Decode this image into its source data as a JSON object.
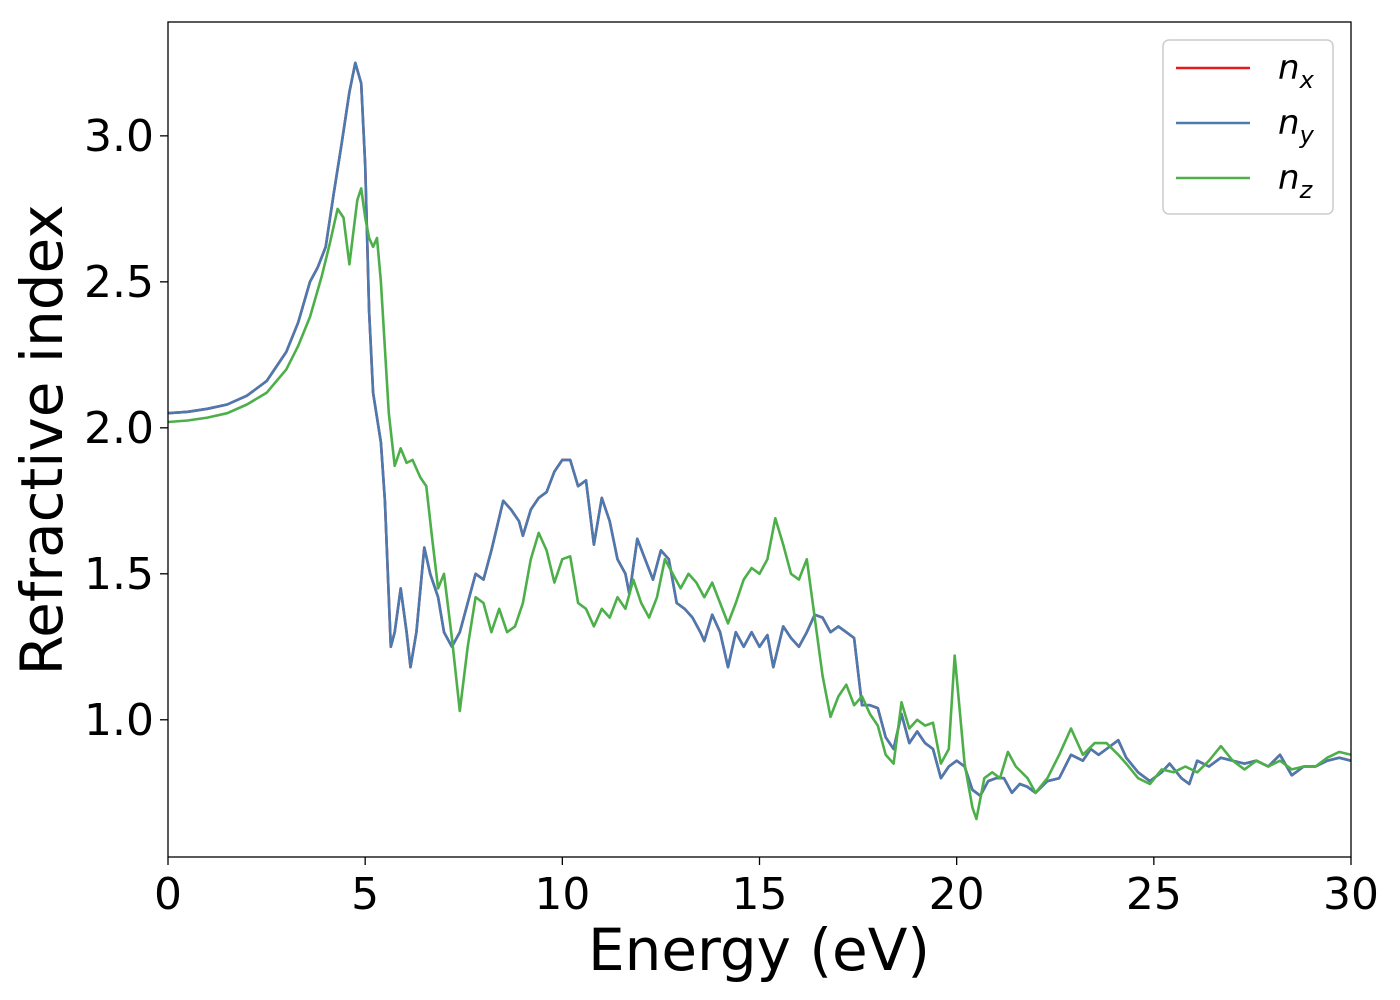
{
  "chart_data": {
    "type": "line",
    "title": "",
    "xlabel": "Energy (eV)",
    "ylabel": "Refractive index",
    "xlim": [
      0,
      30
    ],
    "ylim": [
      0.53,
      3.39
    ],
    "xticks": [
      0,
      5,
      10,
      15,
      20,
      25,
      30
    ],
    "xtick_labels": [
      "0",
      "5",
      "10",
      "15",
      "20",
      "25",
      "30"
    ],
    "yticks": [
      1.0,
      1.5,
      2.0,
      2.5,
      3.0
    ],
    "ytick_labels": [
      "1.0",
      "1.5",
      "2.0",
      "2.5",
      "3.0"
    ],
    "grid": false,
    "legend_position": "top-right",
    "series": [
      {
        "name": "n_x",
        "legend_main": "n",
        "legend_sub": "x",
        "color": "#e41a1c",
        "points": [
          [
            0,
            2.05
          ],
          [
            0.5,
            2.055
          ],
          [
            1,
            2.065
          ],
          [
            1.5,
            2.08
          ],
          [
            2,
            2.11
          ],
          [
            2.5,
            2.16
          ],
          [
            3,
            2.26
          ],
          [
            3.3,
            2.36
          ],
          [
            3.6,
            2.5
          ],
          [
            3.8,
            2.55
          ],
          [
            4.0,
            2.62
          ],
          [
            4.2,
            2.8
          ],
          [
            4.4,
            2.97
          ],
          [
            4.6,
            3.15
          ],
          [
            4.75,
            3.25
          ],
          [
            4.9,
            3.18
          ],
          [
            5.0,
            2.9
          ],
          [
            5.1,
            2.4
          ],
          [
            5.2,
            2.12
          ],
          [
            5.4,
            1.95
          ],
          [
            5.5,
            1.75
          ],
          [
            5.65,
            1.25
          ],
          [
            5.75,
            1.3
          ],
          [
            5.9,
            1.45
          ],
          [
            6.05,
            1.3
          ],
          [
            6.15,
            1.18
          ],
          [
            6.3,
            1.3
          ],
          [
            6.5,
            1.59
          ],
          [
            6.65,
            1.5
          ],
          [
            6.85,
            1.42
          ],
          [
            7.0,
            1.3
          ],
          [
            7.2,
            1.25
          ],
          [
            7.4,
            1.3
          ],
          [
            7.6,
            1.4
          ],
          [
            7.8,
            1.5
          ],
          [
            8.0,
            1.48
          ],
          [
            8.2,
            1.58
          ],
          [
            8.5,
            1.75
          ],
          [
            8.7,
            1.72
          ],
          [
            8.9,
            1.68
          ],
          [
            9.0,
            1.63
          ],
          [
            9.2,
            1.72
          ],
          [
            9.4,
            1.76
          ],
          [
            9.6,
            1.78
          ],
          [
            9.8,
            1.85
          ],
          [
            10.0,
            1.89
          ],
          [
            10.2,
            1.89
          ],
          [
            10.4,
            1.8
          ],
          [
            10.6,
            1.82
          ],
          [
            10.8,
            1.6
          ],
          [
            11.0,
            1.76
          ],
          [
            11.2,
            1.68
          ],
          [
            11.4,
            1.55
          ],
          [
            11.6,
            1.5
          ],
          [
            11.7,
            1.43
          ],
          [
            11.9,
            1.62
          ],
          [
            12.1,
            1.55
          ],
          [
            12.3,
            1.48
          ],
          [
            12.5,
            1.58
          ],
          [
            12.7,
            1.55
          ],
          [
            12.9,
            1.4
          ],
          [
            13.1,
            1.38
          ],
          [
            13.3,
            1.35
          ],
          [
            13.5,
            1.3
          ],
          [
            13.6,
            1.27
          ],
          [
            13.8,
            1.36
          ],
          [
            14.0,
            1.3
          ],
          [
            14.2,
            1.18
          ],
          [
            14.4,
            1.3
          ],
          [
            14.6,
            1.25
          ],
          [
            14.8,
            1.3
          ],
          [
            15.0,
            1.25
          ],
          [
            15.2,
            1.29
          ],
          [
            15.35,
            1.18
          ],
          [
            15.6,
            1.32
          ],
          [
            15.8,
            1.28
          ],
          [
            16.0,
            1.25
          ],
          [
            16.2,
            1.3
          ],
          [
            16.4,
            1.36
          ],
          [
            16.6,
            1.35
          ],
          [
            16.8,
            1.3
          ],
          [
            17.0,
            1.32
          ],
          [
            17.2,
            1.3
          ],
          [
            17.4,
            1.28
          ],
          [
            17.6,
            1.05
          ],
          [
            17.8,
            1.05
          ],
          [
            18.0,
            1.04
          ],
          [
            18.2,
            0.94
          ],
          [
            18.4,
            0.9
          ],
          [
            18.6,
            1.02
          ],
          [
            18.8,
            0.92
          ],
          [
            19.0,
            0.96
          ],
          [
            19.2,
            0.92
          ],
          [
            19.4,
            0.9
          ],
          [
            19.6,
            0.8
          ],
          [
            19.8,
            0.84
          ],
          [
            20.0,
            0.86
          ],
          [
            20.2,
            0.84
          ],
          [
            20.4,
            0.76
          ],
          [
            20.6,
            0.74
          ],
          [
            20.8,
            0.79
          ],
          [
            21.0,
            0.8
          ],
          [
            21.2,
            0.8
          ],
          [
            21.4,
            0.75
          ],
          [
            21.6,
            0.78
          ],
          [
            21.8,
            0.77
          ],
          [
            22.0,
            0.75
          ],
          [
            22.3,
            0.79
          ],
          [
            22.6,
            0.8
          ],
          [
            22.9,
            0.88
          ],
          [
            23.2,
            0.86
          ],
          [
            23.4,
            0.9
          ],
          [
            23.6,
            0.88
          ],
          [
            23.8,
            0.9
          ],
          [
            24.1,
            0.93
          ],
          [
            24.3,
            0.87
          ],
          [
            24.6,
            0.82
          ],
          [
            24.9,
            0.79
          ],
          [
            25.2,
            0.82
          ],
          [
            25.4,
            0.85
          ],
          [
            25.7,
            0.8
          ],
          [
            25.9,
            0.78
          ],
          [
            26.1,
            0.86
          ],
          [
            26.4,
            0.84
          ],
          [
            26.7,
            0.87
          ],
          [
            27.0,
            0.86
          ],
          [
            27.3,
            0.85
          ],
          [
            27.6,
            0.86
          ],
          [
            27.9,
            0.84
          ],
          [
            28.2,
            0.88
          ],
          [
            28.5,
            0.81
          ],
          [
            28.8,
            0.84
          ],
          [
            29.1,
            0.84
          ],
          [
            29.4,
            0.86
          ],
          [
            29.7,
            0.87
          ],
          [
            30.0,
            0.86
          ]
        ]
      },
      {
        "name": "n_y",
        "legend_main": "n",
        "legend_sub": "y",
        "color": "#4a7ab0",
        "same_as": "n_x"
      },
      {
        "name": "n_z",
        "legend_main": "n",
        "legend_sub": "z",
        "color": "#4daf4a",
        "points": [
          [
            0,
            2.02
          ],
          [
            0.5,
            2.025
          ],
          [
            1,
            2.035
          ],
          [
            1.5,
            2.05
          ],
          [
            2,
            2.08
          ],
          [
            2.5,
            2.12
          ],
          [
            3,
            2.2
          ],
          [
            3.3,
            2.28
          ],
          [
            3.6,
            2.38
          ],
          [
            3.9,
            2.52
          ],
          [
            4.1,
            2.63
          ],
          [
            4.3,
            2.75
          ],
          [
            4.45,
            2.72
          ],
          [
            4.6,
            2.56
          ],
          [
            4.8,
            2.78
          ],
          [
            4.9,
            2.82
          ],
          [
            5.0,
            2.72
          ],
          [
            5.1,
            2.65
          ],
          [
            5.2,
            2.62
          ],
          [
            5.3,
            2.65
          ],
          [
            5.4,
            2.5
          ],
          [
            5.6,
            2.05
          ],
          [
            5.75,
            1.87
          ],
          [
            5.9,
            1.93
          ],
          [
            6.05,
            1.88
          ],
          [
            6.2,
            1.89
          ],
          [
            6.4,
            1.83
          ],
          [
            6.55,
            1.8
          ],
          [
            6.7,
            1.62
          ],
          [
            6.85,
            1.45
          ],
          [
            7.0,
            1.5
          ],
          [
            7.2,
            1.28
          ],
          [
            7.4,
            1.03
          ],
          [
            7.6,
            1.25
          ],
          [
            7.8,
            1.42
          ],
          [
            8.0,
            1.4
          ],
          [
            8.2,
            1.3
          ],
          [
            8.4,
            1.38
          ],
          [
            8.6,
            1.3
          ],
          [
            8.8,
            1.32
          ],
          [
            9.0,
            1.4
          ],
          [
            9.2,
            1.55
          ],
          [
            9.4,
            1.64
          ],
          [
            9.6,
            1.58
          ],
          [
            9.8,
            1.47
          ],
          [
            10.0,
            1.55
          ],
          [
            10.2,
            1.56
          ],
          [
            10.4,
            1.4
          ],
          [
            10.6,
            1.38
          ],
          [
            10.8,
            1.32
          ],
          [
            11.0,
            1.38
          ],
          [
            11.2,
            1.35
          ],
          [
            11.4,
            1.42
          ],
          [
            11.6,
            1.38
          ],
          [
            11.8,
            1.48
          ],
          [
            12.0,
            1.4
          ],
          [
            12.2,
            1.35
          ],
          [
            12.4,
            1.42
          ],
          [
            12.6,
            1.55
          ],
          [
            12.8,
            1.5
          ],
          [
            13.0,
            1.45
          ],
          [
            13.2,
            1.5
          ],
          [
            13.4,
            1.47
          ],
          [
            13.6,
            1.42
          ],
          [
            13.8,
            1.47
          ],
          [
            14.0,
            1.4
          ],
          [
            14.2,
            1.33
          ],
          [
            14.4,
            1.4
          ],
          [
            14.6,
            1.48
          ],
          [
            14.8,
            1.52
          ],
          [
            15.0,
            1.5
          ],
          [
            15.2,
            1.55
          ],
          [
            15.4,
            1.69
          ],
          [
            15.6,
            1.6
          ],
          [
            15.8,
            1.5
          ],
          [
            16.0,
            1.48
          ],
          [
            16.2,
            1.55
          ],
          [
            16.4,
            1.35
          ],
          [
            16.6,
            1.15
          ],
          [
            16.8,
            1.01
          ],
          [
            17.0,
            1.08
          ],
          [
            17.2,
            1.12
          ],
          [
            17.4,
            1.05
          ],
          [
            17.6,
            1.08
          ],
          [
            17.8,
            1.02
          ],
          [
            18.0,
            0.98
          ],
          [
            18.2,
            0.88
          ],
          [
            18.4,
            0.85
          ],
          [
            18.6,
            1.06
          ],
          [
            18.8,
            0.97
          ],
          [
            19.0,
            1.0
          ],
          [
            19.2,
            0.98
          ],
          [
            19.4,
            0.99
          ],
          [
            19.6,
            0.85
          ],
          [
            19.8,
            0.9
          ],
          [
            19.95,
            1.22
          ],
          [
            20.2,
            0.85
          ],
          [
            20.4,
            0.7
          ],
          [
            20.5,
            0.66
          ],
          [
            20.7,
            0.8
          ],
          [
            20.9,
            0.82
          ],
          [
            21.1,
            0.8
          ],
          [
            21.3,
            0.89
          ],
          [
            21.5,
            0.84
          ],
          [
            21.8,
            0.8
          ],
          [
            22.0,
            0.75
          ],
          [
            22.3,
            0.8
          ],
          [
            22.6,
            0.88
          ],
          [
            22.9,
            0.97
          ],
          [
            23.2,
            0.88
          ],
          [
            23.5,
            0.92
          ],
          [
            23.8,
            0.92
          ],
          [
            24.1,
            0.88
          ],
          [
            24.3,
            0.85
          ],
          [
            24.6,
            0.8
          ],
          [
            24.9,
            0.78
          ],
          [
            25.2,
            0.83
          ],
          [
            25.5,
            0.82
          ],
          [
            25.8,
            0.84
          ],
          [
            26.1,
            0.82
          ],
          [
            26.4,
            0.86
          ],
          [
            26.7,
            0.91
          ],
          [
            27.0,
            0.86
          ],
          [
            27.3,
            0.83
          ],
          [
            27.6,
            0.86
          ],
          [
            27.9,
            0.84
          ],
          [
            28.2,
            0.86
          ],
          [
            28.5,
            0.83
          ],
          [
            28.8,
            0.84
          ],
          [
            29.1,
            0.84
          ],
          [
            29.4,
            0.87
          ],
          [
            29.7,
            0.89
          ],
          [
            30.0,
            0.88
          ]
        ]
      }
    ]
  }
}
